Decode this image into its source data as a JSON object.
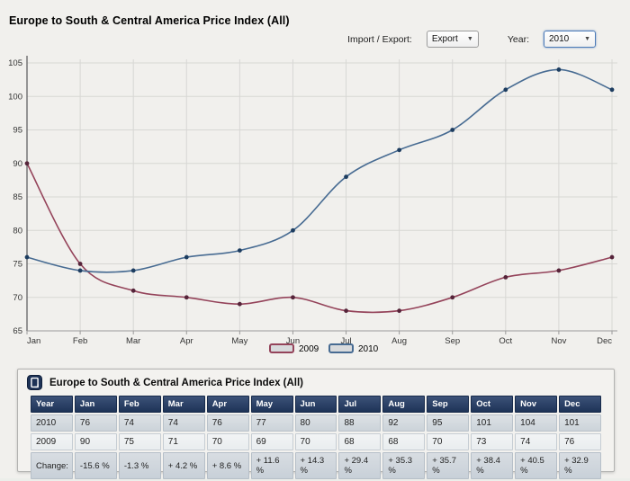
{
  "page_title": "Europe to South & Central America Price Index (All)",
  "controls": {
    "import_export_label": "Import / Export:",
    "import_export_value": "Export",
    "year_label": "Year:",
    "year_value": "2010"
  },
  "chart_data": {
    "type": "line",
    "title": "Europe to South & Central America Price Index (All)",
    "categories": [
      "Jan",
      "Feb",
      "Mar",
      "Apr",
      "May",
      "Jun",
      "Jul",
      "Aug",
      "Sep",
      "Oct",
      "Nov",
      "Dec"
    ],
    "series": [
      {
        "name": "2009",
        "color": "#94435a",
        "marker_color": "#56243a",
        "values": [
          90,
          75,
          71,
          70,
          69,
          70,
          68,
          68,
          70,
          73,
          74,
          76
        ]
      },
      {
        "name": "2010",
        "color": "#476b92",
        "marker_color": "#1d3d60",
        "values": [
          76,
          74,
          74,
          76,
          77,
          80,
          88,
          92,
          95,
          101,
          104,
          101
        ]
      }
    ],
    "ylim": [
      65,
      105
    ],
    "ytick_step": 5,
    "grid": true,
    "legend_position": "bottom",
    "legend_swatch_fill": "#d8dadc"
  },
  "table": {
    "title": "Europe to South & Central America Price Index (All)",
    "columns": [
      "Year",
      "Jan",
      "Feb",
      "Mar",
      "Apr",
      "May",
      "Jun",
      "Jul",
      "Aug",
      "Sep",
      "Oct",
      "Nov",
      "Dec"
    ],
    "rows": [
      {
        "label": "2010",
        "cells": [
          "76",
          "74",
          "74",
          "76",
          "77",
          "80",
          "88",
          "92",
          "95",
          "101",
          "104",
          "101"
        ]
      },
      {
        "label": "2009",
        "cells": [
          "90",
          "75",
          "71",
          "70",
          "69",
          "70",
          "68",
          "68",
          "70",
          "73",
          "74",
          "76"
        ]
      },
      {
        "label": "Change:",
        "cells": [
          "-15.6 %",
          "-1.3 %",
          "+ 4.2 %",
          "+ 8.6 %",
          "+ 11.6 %",
          "+ 14.3 %",
          "+ 29.4 %",
          "+ 35.3 %",
          "+ 35.7 %",
          "+ 38.4 %",
          "+ 40.5 %",
          "+ 32.9 %"
        ]
      }
    ]
  },
  "colors": {
    "accent_navy": "#1e3357",
    "grid_line": "#d7d7d4",
    "y_axis": "#58585a",
    "x_axis": "#9a9a9a",
    "panel_bg": "#f3f2ef",
    "page_bg": "#f1f0ed"
  }
}
